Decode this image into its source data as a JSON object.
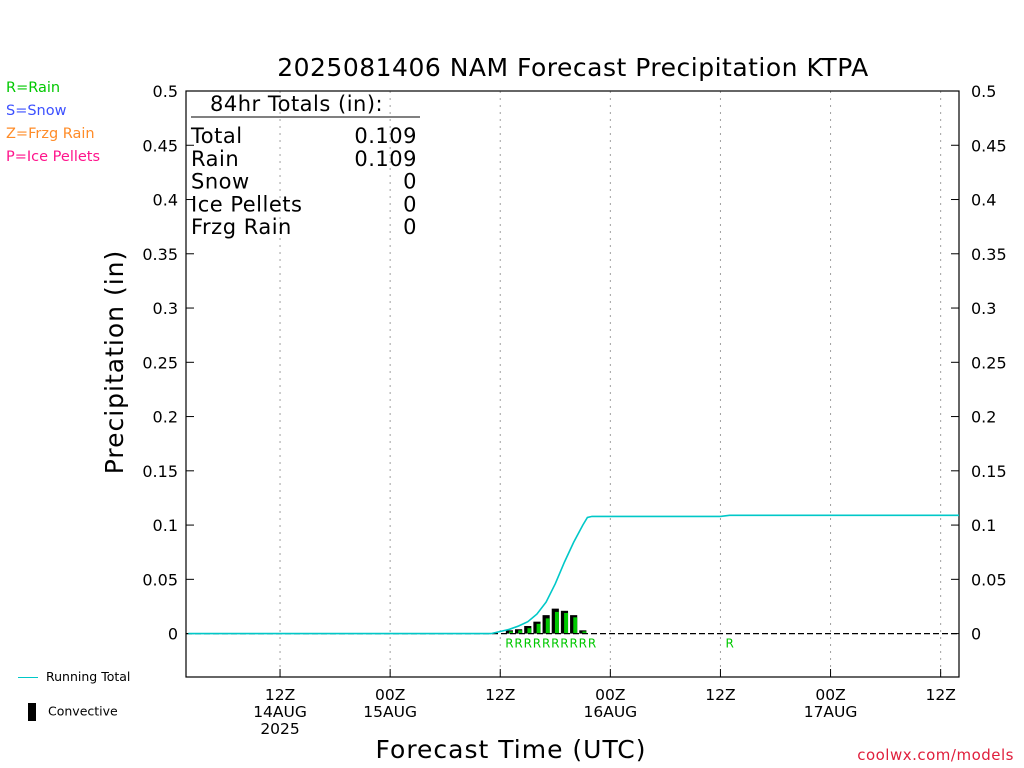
{
  "chart_data": {
    "type": "line",
    "title": "2025081406 NAM Forecast Precipitation KTPA",
    "xlabel": "Forecast Time (UTC)",
    "ylabel": "Precipitation (in)",
    "ylim": [
      -0.04,
      0.5
    ],
    "yticks": [
      0,
      0.05,
      0.1,
      0.15,
      0.2,
      0.25,
      0.3,
      0.35,
      0.4,
      0.45,
      0.5
    ],
    "ytick_labels": [
      "0",
      "0.05",
      "0.1",
      "0.15",
      "0.2",
      "0.25",
      "0.3",
      "0.35",
      "0.4",
      "0.45",
      "0.5"
    ],
    "xlim": [
      -4.25,
      80
    ],
    "x_units": "forecast hours from 2025-08-14 06Z",
    "xticks": [
      {
        "x": 6,
        "labels": [
          "12Z",
          "14AUG",
          "2025"
        ]
      },
      {
        "x": 18,
        "labels": [
          "00Z",
          "15AUG"
        ]
      },
      {
        "x": 30,
        "labels": [
          "12Z"
        ]
      },
      {
        "x": 42,
        "labels": [
          "00Z",
          "16AUG"
        ]
      },
      {
        "x": 54,
        "labels": [
          "12Z"
        ]
      },
      {
        "x": 66,
        "labels": [
          "00Z",
          "17AUG"
        ]
      },
      {
        "x": 78,
        "labels": [
          "12Z"
        ]
      }
    ],
    "grid": "vertical dotted at tick marks",
    "totals_box": {
      "heading": "84hr Totals (in):",
      "rows": [
        {
          "label": "Total",
          "value": "0.109"
        },
        {
          "label": "Rain",
          "value": "0.109"
        },
        {
          "label": "Snow",
          "value": "0"
        },
        {
          "label": "Ice Pellets",
          "value": "0"
        },
        {
          "label": "Frzg Rain",
          "value": "0"
        }
      ]
    },
    "series": [
      {
        "name": "Running Total",
        "kind": "line",
        "color": "#00c8c8",
        "points": [
          [
            -4,
            0
          ],
          [
            29,
            0
          ],
          [
            31,
            0.004
          ],
          [
            32,
            0.007
          ],
          [
            33,
            0.011
          ],
          [
            34,
            0.018
          ],
          [
            35,
            0.029
          ],
          [
            36,
            0.046
          ],
          [
            37,
            0.066
          ],
          [
            38,
            0.084
          ],
          [
            39,
            0.1
          ],
          [
            39.5,
            0.107
          ],
          [
            40,
            0.108
          ],
          [
            54,
            0.108
          ],
          [
            55,
            0.109
          ],
          [
            80,
            0.109
          ]
        ]
      },
      {
        "name": "Convective",
        "kind": "bar",
        "color": "#000000",
        "points": [
          [
            31,
            0.003
          ],
          [
            32,
            0.004
          ],
          [
            33,
            0.007
          ],
          [
            34,
            0.011
          ],
          [
            35,
            0.017
          ],
          [
            36,
            0.023
          ],
          [
            37,
            0.021
          ],
          [
            38,
            0.017
          ],
          [
            39,
            0.003
          ]
        ]
      },
      {
        "name": "Rain",
        "kind": "bar",
        "color": "#00c800",
        "points": [
          [
            31,
            0.002
          ],
          [
            32,
            0.003
          ],
          [
            33,
            0.005
          ],
          [
            34,
            0.009
          ],
          [
            35,
            0.014
          ],
          [
            36,
            0.02
          ],
          [
            37,
            0.019
          ],
          [
            38,
            0.015
          ],
          [
            39,
            0.002
          ]
        ]
      }
    ],
    "ptype_marker_row": {
      "color": "#00c800",
      "markers": [
        {
          "x": 31,
          "label": "R"
        },
        {
          "x": 32,
          "label": "R"
        },
        {
          "x": 33,
          "label": "R"
        },
        {
          "x": 34,
          "label": "R"
        },
        {
          "x": 35,
          "label": "R"
        },
        {
          "x": 36,
          "label": "R"
        },
        {
          "x": 37,
          "label": "R"
        },
        {
          "x": 38,
          "label": "R"
        },
        {
          "x": 39,
          "label": "R"
        },
        {
          "x": 40,
          "label": "R"
        },
        {
          "x": 55,
          "label": "R"
        }
      ]
    },
    "zero_line_style": "dashed black"
  },
  "ptype_legend": [
    {
      "text": "R=Rain",
      "color": "#00c800"
    },
    {
      "text": "S=Snow",
      "color": "#3c50ff"
    },
    {
      "text": "Z=Frzg Rain",
      "color": "#ff8c28"
    },
    {
      "text": "P=Ice Pellets",
      "color": "#ff148c"
    }
  ],
  "bottom_legend": {
    "running_total": "Running Total",
    "convective": "Convective"
  },
  "source": "coolwx.com/models"
}
